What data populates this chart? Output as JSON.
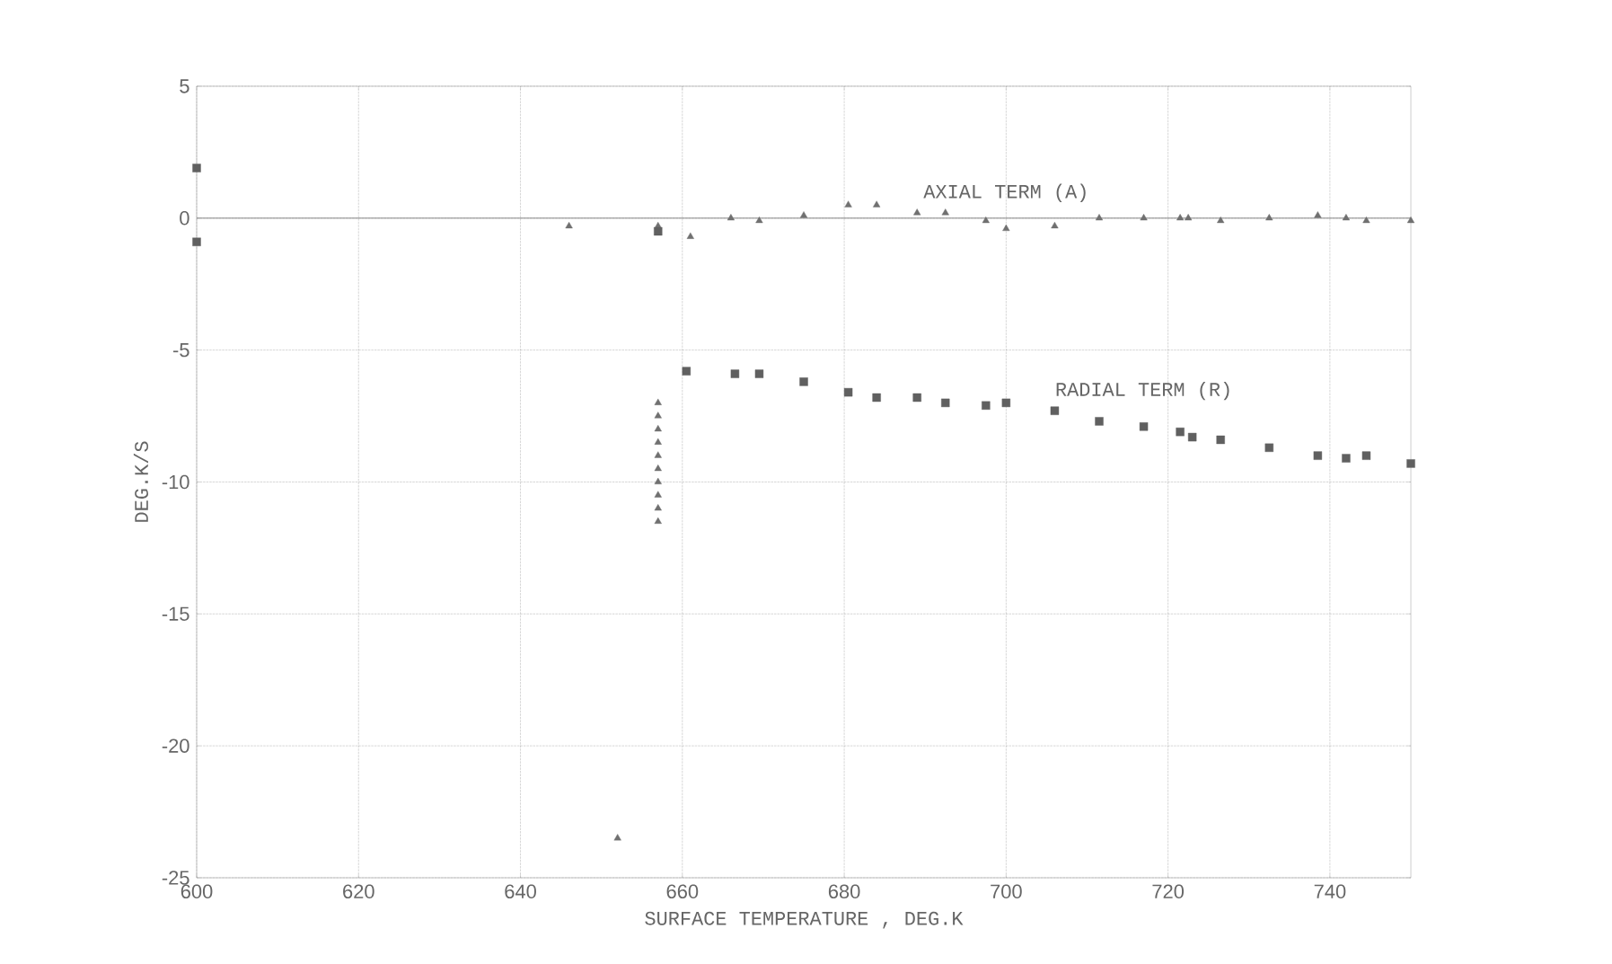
{
  "chart_data": {
    "type": "scatter",
    "xlabel": "SURFACE TEMPERATURE    , DEG.K",
    "ylabel": "DEG.K/S",
    "xlim": [
      600,
      750
    ],
    "ylim": [
      -25,
      5
    ],
    "xticks": [
      600,
      620,
      640,
      660,
      680,
      700,
      720,
      740
    ],
    "yticks": [
      -25,
      -20,
      -15,
      -10,
      -5,
      0,
      5
    ],
    "grid": true,
    "ref_lines": [
      {
        "axis": "y",
        "value": 0,
        "color": "#707070"
      }
    ],
    "series": [
      {
        "name": "AXIAL TERM (A)",
        "color": "#707070",
        "marker": "triangle",
        "x": [
          646,
          652,
          657,
          657,
          657,
          657,
          657,
          657,
          657,
          657,
          657,
          657,
          657,
          661,
          666,
          669.5,
          675,
          680.5,
          684,
          689,
          692.5,
          697.5,
          700,
          706,
          711.5,
          717,
          721.5,
          722.5,
          726.5,
          732.5,
          738.5,
          742,
          744.5,
          750
        ],
        "values": [
          -0.3,
          -23.5,
          -11.5,
          -11,
          -10.5,
          -10,
          -9.5,
          -9,
          -8.5,
          -8,
          -7.5,
          -7,
          -0.3,
          -0.7,
          0,
          -0.1,
          0.1,
          0.5,
          0.5,
          0.2,
          0.2,
          -0.1,
          -0.4,
          -0.3,
          0,
          0,
          0,
          0,
          -0.1,
          0,
          0.1,
          0,
          -0.1,
          -0.1
        ]
      },
      {
        "name": "RADIAL TERM (R)",
        "color": "#606060",
        "marker": "square",
        "x": [
          600,
          600,
          657,
          660.5,
          666.5,
          669.5,
          675,
          680.5,
          684,
          689,
          692.5,
          697.5,
          700,
          706,
          711.5,
          717,
          721.5,
          723,
          726.5,
          732.5,
          738.5,
          742,
          744.5,
          750
        ],
        "values": [
          1.9,
          -0.9,
          -0.5,
          -5.8,
          -5.9,
          -5.9,
          -6.2,
          -6.6,
          -6.8,
          -6.8,
          -7.0,
          -7.1,
          -7.0,
          -7.3,
          -7.7,
          -7.9,
          -8.1,
          -8.3,
          -8.4,
          -8.7,
          -9.0,
          -9.1,
          -9.0,
          -9.3
        ]
      }
    ]
  }
}
